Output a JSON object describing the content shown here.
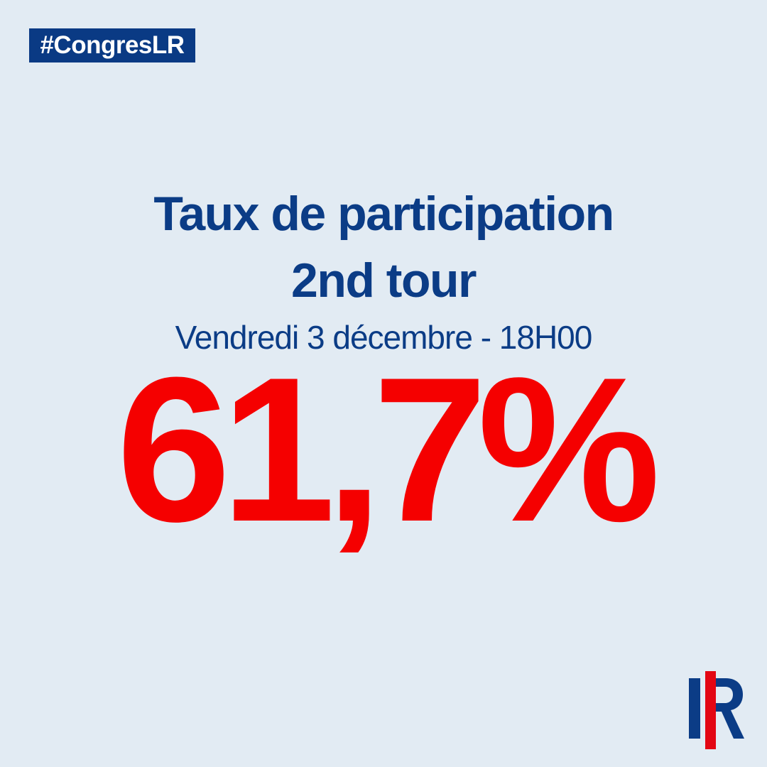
{
  "header": {
    "hashtag": "#CongresLR"
  },
  "headline": {
    "title_line1": "Taux de participation",
    "title_line2": "2nd tour",
    "subtitle": "Vendredi 3 décembre - 18H00"
  },
  "figure": {
    "value": "61,7%"
  }
}
